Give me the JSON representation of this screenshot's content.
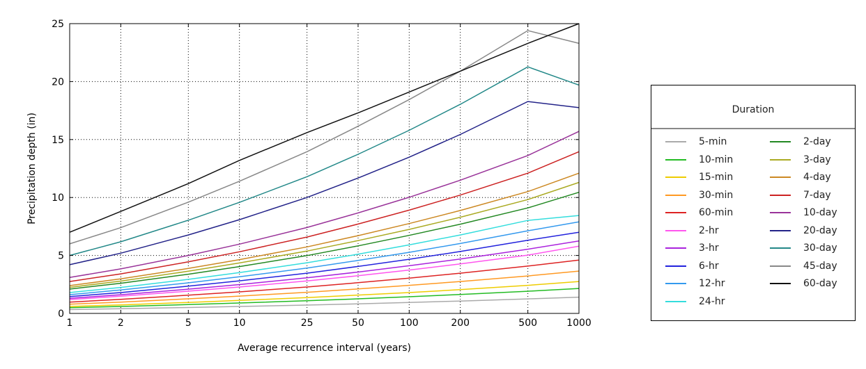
{
  "chart_data": {
    "type": "line",
    "title": "",
    "xlabel": "Average recurrence interval (years)",
    "ylabel": "Precipitation depth (in)",
    "x_scale": "log",
    "x": [
      1,
      2,
      5,
      10,
      25,
      50,
      100,
      200,
      500,
      1000
    ],
    "x_tick_labels": [
      "1",
      "2",
      "5",
      "10",
      "25",
      "50",
      "100",
      "200",
      "500",
      "1000"
    ],
    "xlim": [
      1,
      1000
    ],
    "ylim": [
      0,
      25
    ],
    "y_ticks": [
      0,
      5,
      10,
      15,
      20,
      25
    ],
    "grid": true,
    "legend": {
      "title": "Duration",
      "placement": "right"
    },
    "series": [
      {
        "name": "5-min",
        "color": "#aaaaaa",
        "values": [
          0.33,
          0.4,
          0.51,
          0.6,
          0.72,
          0.83,
          0.95,
          1.07,
          1.25,
          1.4
        ]
      },
      {
        "name": "10-min",
        "color": "#22bb22",
        "values": [
          0.49,
          0.6,
          0.76,
          0.9,
          1.09,
          1.26,
          1.44,
          1.63,
          1.91,
          2.15
        ]
      },
      {
        "name": "15-min",
        "color": "#eecc00",
        "values": [
          0.6,
          0.74,
          0.95,
          1.12,
          1.36,
          1.58,
          1.8,
          2.05,
          2.42,
          2.75
        ]
      },
      {
        "name": "30-min",
        "color": "#ff9922",
        "values": [
          0.8,
          0.98,
          1.26,
          1.49,
          1.82,
          2.11,
          2.42,
          2.75,
          3.23,
          3.65
        ]
      },
      {
        "name": "60-min",
        "color": "#dd2222",
        "values": [
          0.98,
          1.21,
          1.57,
          1.86,
          2.28,
          2.65,
          3.04,
          3.47,
          4.08,
          4.6
        ]
      },
      {
        "name": "2-hr",
        "color": "#ff55ee",
        "values": [
          1.2,
          1.48,
          1.92,
          2.28,
          2.8,
          3.25,
          3.74,
          4.27,
          5.03,
          5.8
        ]
      },
      {
        "name": "3-hr",
        "color": "#aa22dd",
        "values": [
          1.3,
          1.61,
          2.09,
          2.49,
          3.07,
          3.57,
          4.11,
          4.69,
          5.54,
          6.25
        ]
      },
      {
        "name": "6-hr",
        "color": "#2222dd",
        "values": [
          1.45,
          1.8,
          2.35,
          2.81,
          3.47,
          4.05,
          4.67,
          5.34,
          6.31,
          7.0
        ]
      },
      {
        "name": "12-hr",
        "color": "#3399ee",
        "values": [
          1.62,
          2.02,
          2.64,
          3.16,
          3.91,
          4.57,
          5.27,
          6.03,
          7.13,
          7.9
        ]
      },
      {
        "name": "24-hr",
        "color": "#33dddd",
        "values": [
          1.8,
          2.24,
          2.94,
          3.52,
          4.37,
          5.11,
          5.91,
          6.77,
          8.02,
          8.45
        ]
      },
      {
        "name": "2-day",
        "color": "#228822",
        "values": [
          2.1,
          2.6,
          3.38,
          4.04,
          4.99,
          5.83,
          6.73,
          7.7,
          9.1,
          10.45
        ]
      },
      {
        "name": "3-day",
        "color": "#aaaa22",
        "values": [
          2.25,
          2.79,
          3.64,
          4.35,
          5.38,
          6.28,
          7.25,
          8.3,
          9.82,
          11.3
        ]
      },
      {
        "name": "4-day",
        "color": "#cc8822",
        "values": [
          2.4,
          2.98,
          3.88,
          4.64,
          5.74,
          6.71,
          7.75,
          8.88,
          10.51,
          12.1
        ]
      },
      {
        "name": "7-day",
        "color": "#cc2222",
        "values": [
          2.75,
          3.41,
          4.45,
          5.32,
          6.59,
          7.71,
          8.91,
          10.21,
          12.1,
          13.95
        ]
      },
      {
        "name": "10-day",
        "color": "#993399",
        "values": [
          3.1,
          3.84,
          5.0,
          5.98,
          7.41,
          8.67,
          10.02,
          11.49,
          13.62,
          15.7
        ]
      },
      {
        "name": "20-day",
        "color": "#222288",
        "values": [
          4.2,
          5.2,
          6.77,
          8.09,
          10.0,
          11.68,
          13.48,
          15.44,
          18.28,
          17.75
        ]
      },
      {
        "name": "30-day",
        "color": "#228888",
        "values": [
          5.0,
          6.18,
          8.04,
          9.58,
          11.79,
          13.73,
          15.8,
          18.04,
          21.27,
          19.7
        ]
      },
      {
        "name": "45-day",
        "color": "#888888",
        "values": [
          6.0,
          7.4,
          9.6,
          11.4,
          13.95,
          16.15,
          18.45,
          20.9,
          24.4,
          23.3
        ]
      },
      {
        "name": "60-day",
        "color": "#111111",
        "values": [
          7.0,
          8.8,
          11.2,
          13.2,
          15.6,
          17.3,
          19.1,
          20.9,
          23.3,
          25.0
        ]
      }
    ]
  }
}
